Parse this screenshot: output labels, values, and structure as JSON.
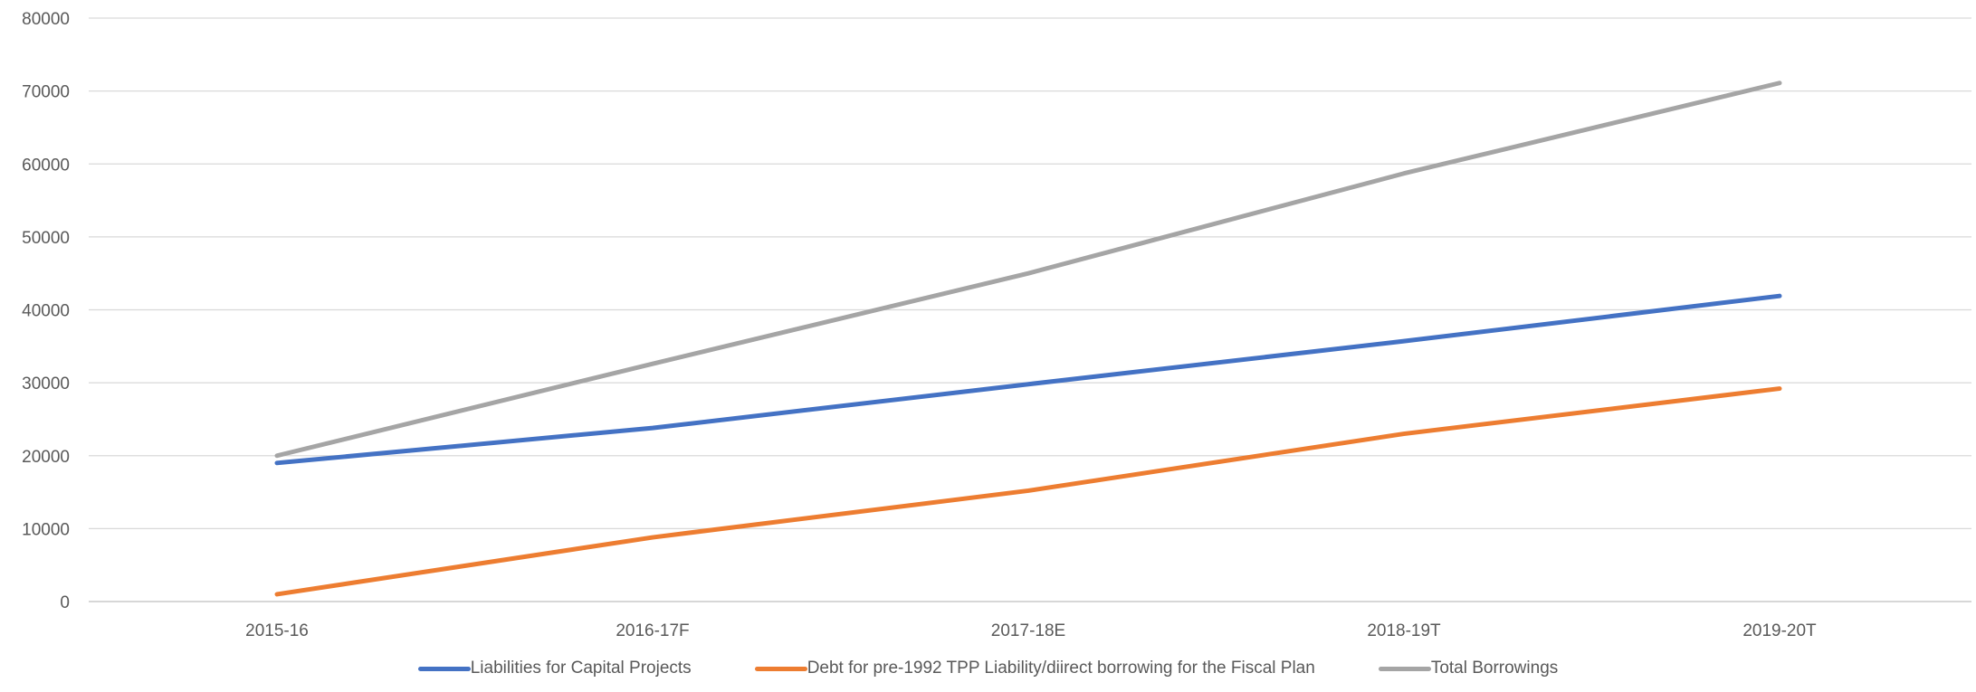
{
  "chart_data": {
    "type": "line",
    "categories": [
      "2015-16",
      "2016-17F",
      "2017-18E",
      "2018-19T",
      "2019-20T"
    ],
    "series": [
      {
        "name": "Liabilities for Capital Projects",
        "color": "#4472C4",
        "values": [
          19000,
          23800,
          29800,
          35700,
          41900
        ]
      },
      {
        "name": "Debt for pre-1992 TPP Liability/diirect borrowing for the Fiscal Plan",
        "color": "#ED7D31",
        "values": [
          1000,
          8800,
          15200,
          23000,
          29200
        ]
      },
      {
        "name": "Total Borrowings",
        "color": "#A5A5A5",
        "values": [
          20000,
          32600,
          45000,
          58700,
          71100
        ]
      }
    ],
    "y_ticks": [
      "0",
      "10000",
      "20000",
      "30000",
      "40000",
      "50000",
      "60000",
      "70000",
      "80000"
    ],
    "ylim": [
      0,
      80000
    ],
    "grid": true,
    "legend_position": "bottom"
  }
}
